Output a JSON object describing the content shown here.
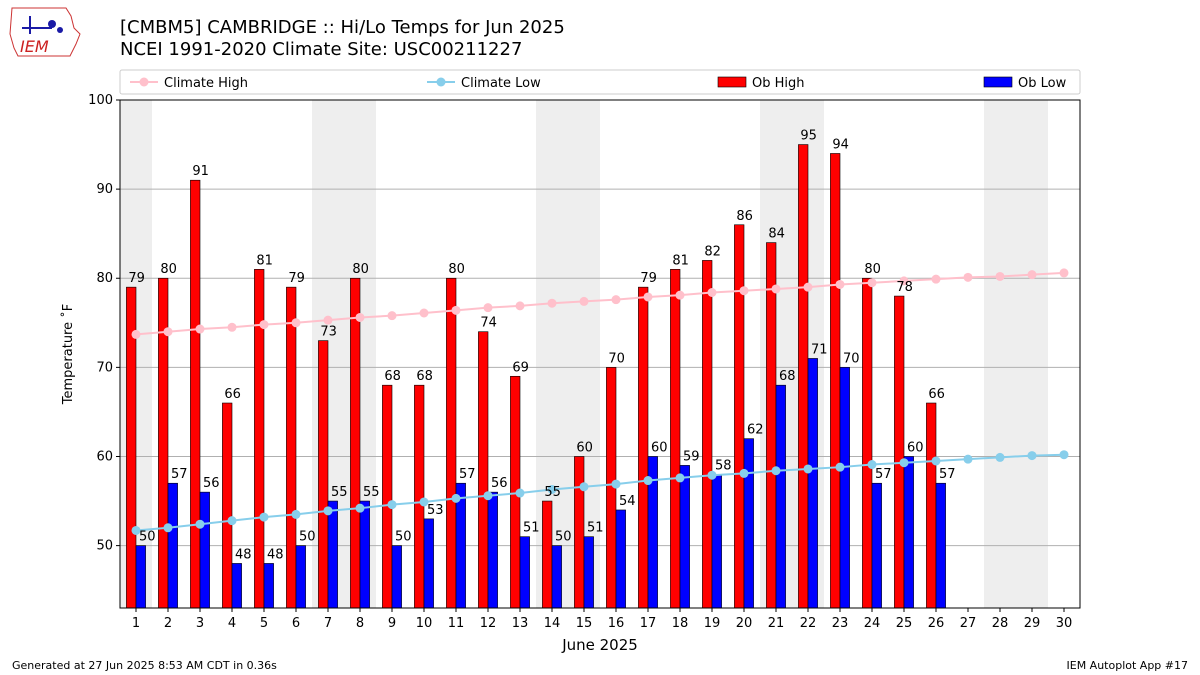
{
  "header": {
    "title_line1": "[CMBM5] CAMBRIDGE :: Hi/Lo Temps for Jun 2025",
    "title_line2": "NCEI 1991-2020 Climate Site: USC00211227",
    "logo_text": "IEM"
  },
  "footer": {
    "left": "Generated at 27 Jun 2025 8:53 AM CDT in 0.36s",
    "right": "IEM Autoplot App #17"
  },
  "chart_data": {
    "type": "bar",
    "xlabel": "June 2025",
    "ylabel": "Temperature ˚F",
    "ylim": [
      43,
      100
    ],
    "yticks": [
      50,
      60,
      70,
      80,
      90,
      100
    ],
    "grid": "horizontal",
    "legend_position": "top",
    "x": [
      1,
      2,
      3,
      4,
      5,
      6,
      7,
      8,
      9,
      10,
      11,
      12,
      13,
      14,
      15,
      16,
      17,
      18,
      19,
      20,
      21,
      22,
      23,
      24,
      25,
      26,
      27,
      28,
      29,
      30
    ],
    "weekend_bands": [
      [
        1,
        1
      ],
      [
        7,
        8
      ],
      [
        14,
        15
      ],
      [
        21,
        22
      ],
      [
        28,
        29
      ]
    ],
    "series": [
      {
        "name": "Climate High",
        "kind": "line",
        "color": "#ffc0cb",
        "values": [
          73.7,
          74.0,
          74.3,
          74.5,
          74.8,
          75.0,
          75.3,
          75.6,
          75.8,
          76.1,
          76.4,
          76.7,
          76.9,
          77.2,
          77.4,
          77.6,
          77.9,
          78.1,
          78.4,
          78.6,
          78.8,
          79.0,
          79.3,
          79.5,
          79.7,
          79.9,
          80.1,
          80.2,
          80.4,
          80.6
        ]
      },
      {
        "name": "Climate Low",
        "kind": "line",
        "color": "#87ceeb",
        "values": [
          51.7,
          52.0,
          52.4,
          52.8,
          53.2,
          53.5,
          53.9,
          54.2,
          54.6,
          54.9,
          55.3,
          55.6,
          55.9,
          56.3,
          56.6,
          56.9,
          57.3,
          57.6,
          57.9,
          58.1,
          58.4,
          58.6,
          58.8,
          59.1,
          59.3,
          59.5,
          59.7,
          59.9,
          60.1,
          60.2
        ]
      },
      {
        "name": "Ob High",
        "kind": "bar",
        "color": "#ff0000",
        "values": [
          79,
          80,
          91,
          66,
          81,
          79,
          73,
          80,
          68,
          68,
          80,
          74,
          69,
          55,
          60,
          70,
          79,
          81,
          82,
          86,
          84,
          95,
          94,
          80,
          78,
          66,
          null,
          null,
          null,
          null
        ]
      },
      {
        "name": "Ob Low",
        "kind": "bar",
        "color": "#0000ff",
        "values": [
          50,
          57,
          56,
          48,
          48,
          50,
          55,
          55,
          50,
          53,
          57,
          56,
          51,
          50,
          51,
          54,
          60,
          59,
          58,
          62,
          68,
          71,
          70,
          57,
          60,
          57,
          null,
          null,
          null,
          null
        ]
      }
    ]
  }
}
